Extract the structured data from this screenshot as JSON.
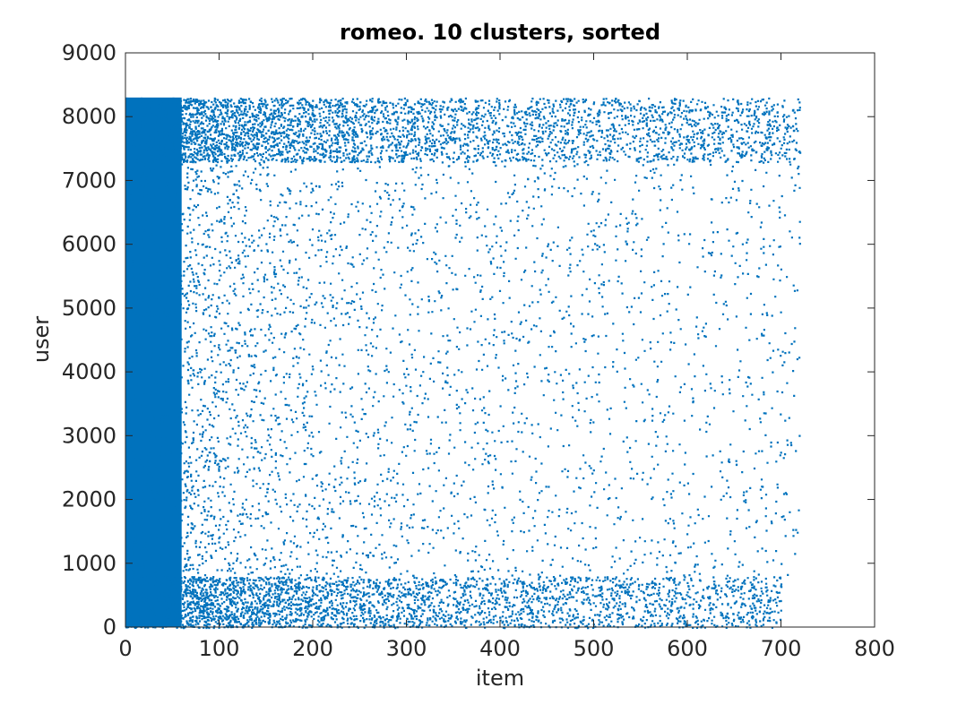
{
  "chart_data": {
    "type": "scatter",
    "title": "romeo. 10 clusters, sorted",
    "xlabel": "item",
    "ylabel": "user",
    "xlim": [
      0,
      800
    ],
    "ylim": [
      0,
      9000
    ],
    "xticks": [
      0,
      100,
      200,
      300,
      400,
      500,
      600,
      700,
      800
    ],
    "yticks": [
      0,
      1000,
      2000,
      3000,
      4000,
      5000,
      6000,
      7000,
      8000,
      9000
    ],
    "grid": false,
    "legend": "none",
    "marker_color": "#0072BD",
    "point_count_note": "",
    "density_regions": [
      {
        "x": [
          0,
          720
        ],
        "y": [
          7300,
          8300
        ],
        "density": "dense near x=0, sparse to x≈720"
      },
      {
        "x": [
          0,
          700
        ],
        "y": [
          800,
          7300
        ],
        "density": "dense for x<180, sparse to x≈720"
      },
      {
        "x": [
          0,
          700
        ],
        "y": [
          0,
          800
        ],
        "density": "dense near x=0, sparse to x≈700"
      }
    ]
  }
}
